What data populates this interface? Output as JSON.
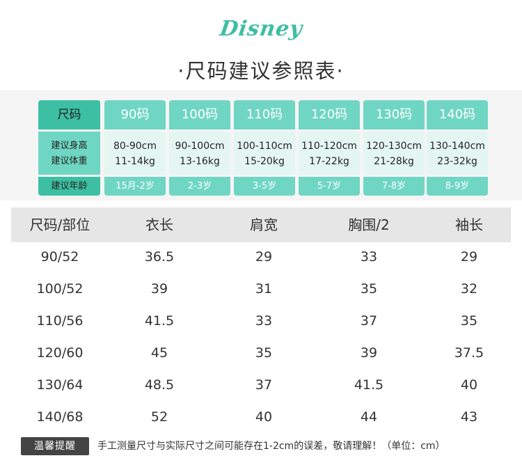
{
  "logo": "Disney",
  "title": "·尺码建议参照表·",
  "size_chart": {
    "header_label": "尺码",
    "body_labels": [
      "建议身高",
      "建议体重"
    ],
    "age_label": "建议年龄",
    "columns": [
      {
        "size": "90码",
        "height": "80-90cm",
        "weight": "11-14kg",
        "age": "15月-2岁"
      },
      {
        "size": "100码",
        "height": "90-100cm",
        "weight": "13-16kg",
        "age": "2-3岁"
      },
      {
        "size": "110码",
        "height": "100-110cm",
        "weight": "15-20kg",
        "age": "3-5岁"
      },
      {
        "size": "120码",
        "height": "110-120cm",
        "weight": "17-22kg",
        "age": "5-7岁"
      },
      {
        "size": "130码",
        "height": "120-130cm",
        "weight": "21-28kg",
        "age": "7-8岁"
      },
      {
        "size": "140码",
        "height": "130-140cm",
        "weight": "23-32kg",
        "age": "8-9岁"
      }
    ]
  },
  "measure_table": {
    "headers": [
      "尺码/部位",
      "衣长",
      "肩宽",
      "胸围/2",
      "袖长"
    ],
    "rows": [
      [
        "90/52",
        "36.5",
        "29",
        "33",
        "29"
      ],
      [
        "100/52",
        "39",
        "31",
        "35",
        "32"
      ],
      [
        "110/56",
        "41.5",
        "33",
        "37",
        "35"
      ],
      [
        "120/60",
        "45",
        "35",
        "39",
        "37.5"
      ],
      [
        "130/64",
        "48.5",
        "37",
        "41.5",
        "40"
      ],
      [
        "140/68",
        "52",
        "40",
        "44",
        "43"
      ]
    ]
  },
  "notice": {
    "badge": "温馨提醒",
    "message": "手工测量尺寸与实际尺寸之间可能存在1-2cm的误差，敬请理解！（单位：cm）"
  },
  "colors": {
    "accent_dark": "#3dbfa3",
    "accent": "#6fd6c3",
    "accent_light": "#e4f6f1",
    "table_header": "#e6e6e6"
  }
}
